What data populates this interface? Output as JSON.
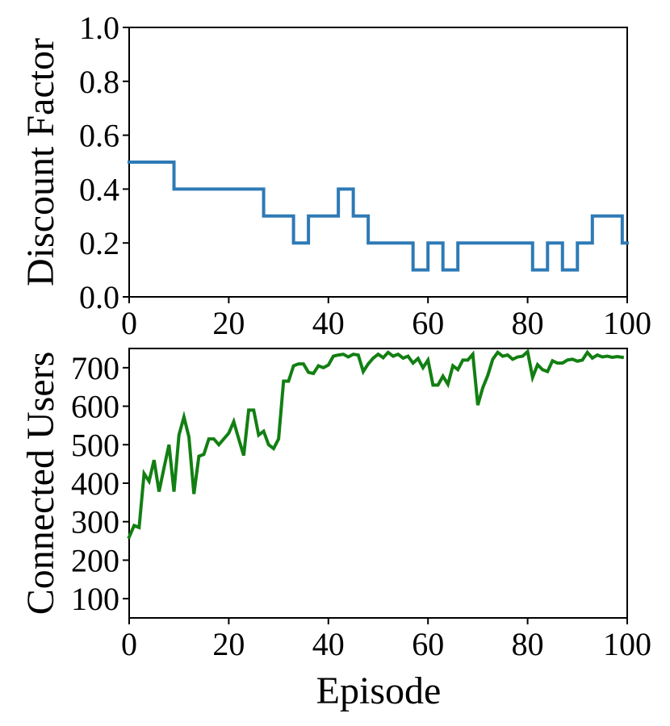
{
  "chart_data": [
    {
      "type": "line",
      "step": true,
      "title": "",
      "xlabel": "",
      "ylabel": "Discount Factor",
      "xlim": [
        0,
        100
      ],
      "ylim": [
        0,
        1
      ],
      "xticks": [
        0,
        20,
        40,
        60,
        80,
        100
      ],
      "yticks": [
        0.0,
        0.2,
        0.4,
        0.6,
        0.8,
        1.0
      ],
      "xtick_labels": [
        "0",
        "20",
        "40",
        "60",
        "80",
        "100"
      ],
      "ytick_labels": [
        "0.0",
        "0.2",
        "0.4",
        "0.6",
        "0.8",
        "1.0"
      ],
      "grid": false,
      "series": [
        {
          "color": "#2e7ab6",
          "x": [
            0,
            9,
            27,
            33,
            36,
            42,
            45,
            48,
            57,
            60,
            63,
            66,
            81,
            84,
            87,
            90,
            93,
            99,
            100
          ],
          "y": [
            0.5,
            0.4,
            0.3,
            0.2,
            0.3,
            0.4,
            0.3,
            0.2,
            0.1,
            0.2,
            0.1,
            0.2,
            0.1,
            0.2,
            0.1,
            0.2,
            0.3,
            0.2,
            0.2
          ]
        }
      ]
    },
    {
      "type": "line",
      "title": "",
      "xlabel": "Episode",
      "ylabel": "Connected Users",
      "xlim": [
        0,
        100
      ],
      "ylim": [
        50,
        750
      ],
      "xticks": [
        0,
        20,
        40,
        60,
        80,
        100
      ],
      "yticks": [
        100,
        200,
        300,
        400,
        500,
        600,
        700
      ],
      "xtick_labels": [
        "0",
        "20",
        "40",
        "60",
        "80",
        "100"
      ],
      "ytick_labels": [
        "100",
        "200",
        "300",
        "400",
        "500",
        "600",
        "700"
      ],
      "grid": false,
      "series": [
        {
          "color": "#127f12",
          "x": [
            0,
            1,
            2,
            3,
            4,
            5,
            6,
            7,
            8,
            9,
            10,
            11,
            12,
            13,
            14,
            15,
            16,
            17,
            18,
            19,
            20,
            21,
            22,
            23,
            24,
            25,
            26,
            27,
            28,
            29,
            30,
            31,
            32,
            33,
            34,
            35,
            36,
            37,
            38,
            39,
            40,
            41,
            42,
            43,
            44,
            45,
            46,
            47,
            48,
            49,
            50,
            51,
            52,
            53,
            54,
            55,
            56,
            57,
            58,
            59,
            60,
            61,
            62,
            63,
            64,
            65,
            66,
            67,
            68,
            69,
            70,
            71,
            72,
            73,
            74,
            75,
            76,
            77,
            78,
            79,
            80,
            81,
            82,
            83,
            84,
            85,
            86,
            87,
            88,
            89,
            90,
            91,
            92,
            93,
            94,
            95,
            96,
            97,
            98,
            99
          ],
          "y": [
            260,
            290,
            285,
            425,
            405,
            460,
            378,
            440,
            500,
            378,
            525,
            572,
            520,
            372,
            470,
            475,
            515,
            515,
            500,
            515,
            530,
            560,
            515,
            472,
            590,
            590,
            525,
            535,
            500,
            490,
            515,
            665,
            665,
            705,
            710,
            710,
            688,
            685,
            705,
            700,
            707,
            730,
            733,
            735,
            728,
            735,
            733,
            690,
            710,
            725,
            735,
            726,
            740,
            730,
            735,
            725,
            730,
            712,
            724,
            700,
            720,
            655,
            655,
            678,
            657,
            705,
            695,
            720,
            720,
            735,
            603,
            648,
            680,
            722,
            740,
            730,
            733,
            722,
            728,
            730,
            742,
            675,
            708,
            695,
            690,
            718,
            712,
            712,
            720,
            722,
            717,
            720,
            740,
            725,
            733,
            728,
            730,
            727,
            729,
            727
          ]
        }
      ]
    }
  ]
}
